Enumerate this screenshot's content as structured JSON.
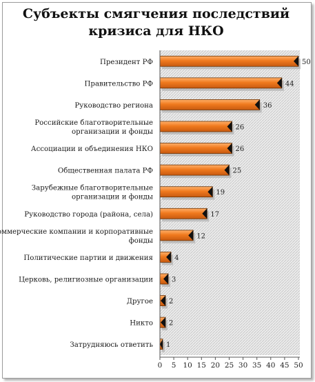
{
  "chart_data": {
    "type": "bar",
    "orientation": "horizontal",
    "title_lines": [
      "Субъекты смягчения последствий",
      "кризиса для НКО"
    ],
    "categories": [
      [
        "Президент РФ"
      ],
      [
        "Правительство РФ"
      ],
      [
        "Руководство региона"
      ],
      [
        "Российские благотворительные",
        "организации и фонды"
      ],
      [
        "Ассоциации и объединения НКО"
      ],
      [
        "Общественная палата РФ"
      ],
      [
        "Зарубежные благотворительные",
        "организации и фонды"
      ],
      [
        "Руководство города (района, села)"
      ],
      [
        "Коммерческие компании и корпоративные",
        "фонды"
      ],
      [
        "Политические партии и движения"
      ],
      [
        "Церковь, религиозные организации"
      ],
      [
        "Другое"
      ],
      [
        "Никто"
      ],
      [
        "Затрудняюсь ответить"
      ]
    ],
    "values": [
      50,
      44,
      36,
      26,
      26,
      25,
      19,
      17,
      12,
      4,
      3,
      2,
      2,
      1
    ],
    "data_labels": [
      "50",
      "44",
      "36",
      "26",
      "26",
      "25",
      "19",
      "17",
      "12",
      "4",
      "3",
      "2",
      "2",
      "1"
    ],
    "xlim": [
      0,
      50
    ],
    "x_ticks": [
      "0",
      "5",
      "10",
      "15",
      "20",
      "25",
      "30",
      "35",
      "40",
      "45",
      "50"
    ],
    "grid": false,
    "legend": "none",
    "colors": {
      "bar": "#f07a1e",
      "bar_dark": "#c85a10",
      "cap": "#111111",
      "plot_bg": "#e6e6e6",
      "shadow": "#b0b0b0"
    }
  }
}
